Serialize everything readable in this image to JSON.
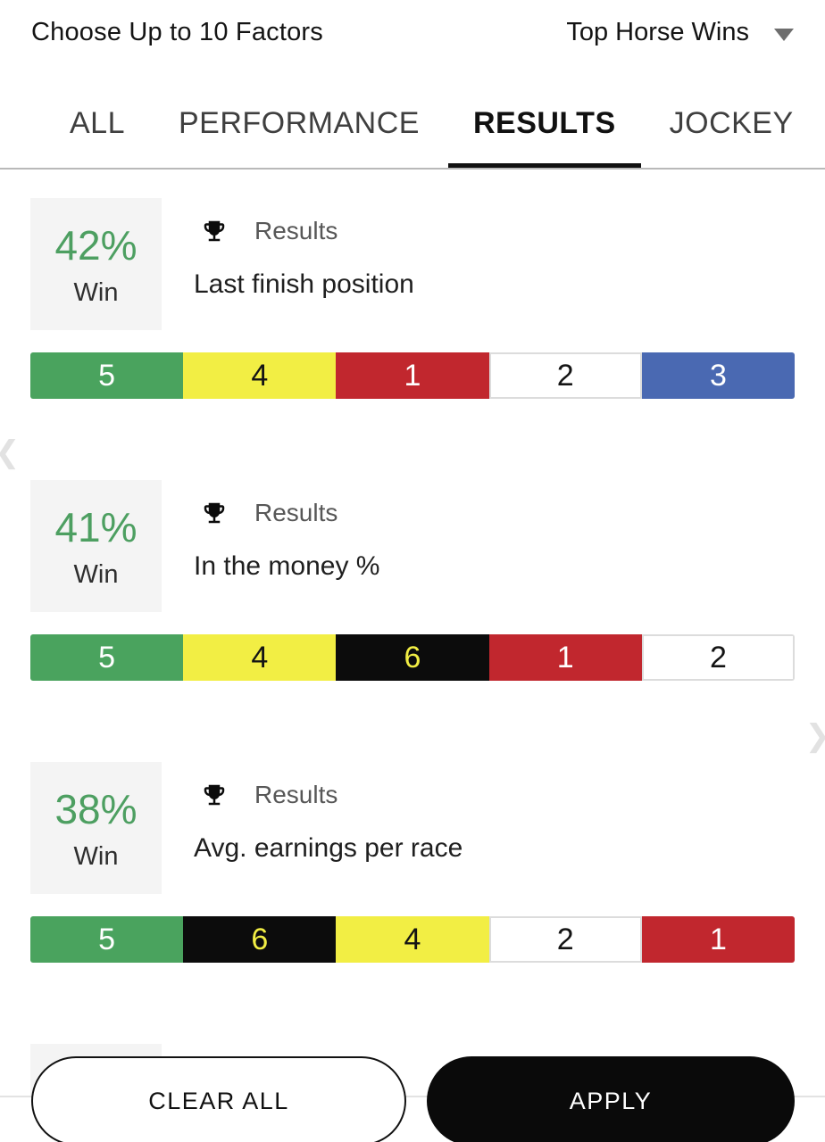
{
  "header": {
    "title": "Choose Up to 10 Factors",
    "sort_label": "Top Horse Wins"
  },
  "tabs": [
    {
      "label": "ALL",
      "active": false
    },
    {
      "label": "PERFORMANCE",
      "active": false
    },
    {
      "label": "RESULTS",
      "active": true
    },
    {
      "label": "JOCKEY",
      "active": false
    }
  ],
  "factors": [
    {
      "win_pct": "42%",
      "win_label": "Win",
      "category": "Results",
      "name": "Last finish position",
      "segments": [
        {
          "value": "5",
          "color": "green"
        },
        {
          "value": "4",
          "color": "yellow"
        },
        {
          "value": "1",
          "color": "red"
        },
        {
          "value": "2",
          "color": "white"
        },
        {
          "value": "3",
          "color": "blue"
        }
      ]
    },
    {
      "win_pct": "41%",
      "win_label": "Win",
      "category": "Results",
      "name": "In the money %",
      "segments": [
        {
          "value": "5",
          "color": "green"
        },
        {
          "value": "4",
          "color": "yellow"
        },
        {
          "value": "6",
          "color": "black"
        },
        {
          "value": "1",
          "color": "red"
        },
        {
          "value": "2",
          "color": "white"
        }
      ]
    },
    {
      "win_pct": "38%",
      "win_label": "Win",
      "category": "Results",
      "name": "Avg. earnings per race",
      "segments": [
        {
          "value": "5",
          "color": "green"
        },
        {
          "value": "6",
          "color": "black"
        },
        {
          "value": "4",
          "color": "yellow"
        },
        {
          "value": "2",
          "color": "white"
        },
        {
          "value": "1",
          "color": "red"
        }
      ]
    }
  ],
  "footer": {
    "clear_label": "CLEAR ALL",
    "apply_label": "APPLY"
  },
  "colors": {
    "accent_green": "#4d9f61",
    "segment_bg": {
      "green": "#4aa35e",
      "yellow": "#f2ee44",
      "red": "#c1272e",
      "white": "#ffffff",
      "blue": "#4a69b2",
      "black": "#0c0c0c"
    },
    "segment_text": {
      "green": "#ffffff",
      "yellow": "#141414",
      "red": "#ffffff",
      "white": "#141414",
      "blue": "#ffffff",
      "black": "#f2ee44"
    }
  }
}
